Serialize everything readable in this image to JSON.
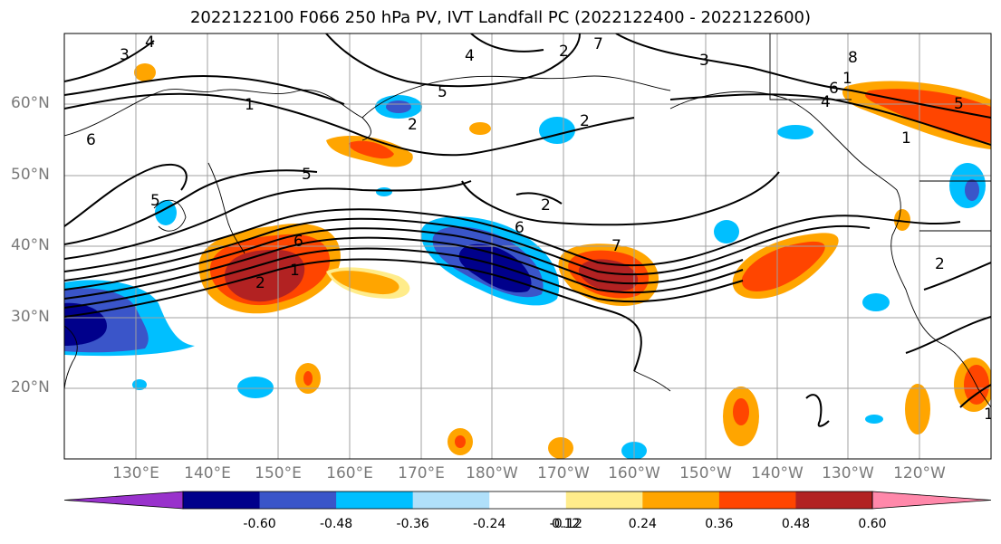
{
  "title": "2022122100 F066 250 hPa PV, IVT Landfall PC (2022122400 - 2022122600)",
  "lat_labels": [
    "60°N",
    "50°N",
    "40°N",
    "30°N",
    "20°N"
  ],
  "lon_labels": [
    "130°E",
    "140°E",
    "150°E",
    "160°E",
    "170°E",
    "180°W",
    "170°W",
    "160°W",
    "150°W",
    "140°W",
    "130°W",
    "120°W"
  ],
  "colorbar": {
    "ticks": [
      "-0.60",
      "-0.48",
      "-0.36",
      "-0.24",
      "-0.12",
      "0.12",
      "0.24",
      "0.36",
      "0.48",
      "0.60"
    ],
    "colors": [
      "#9932cc",
      "#00008b",
      "#3a55c9",
      "#00bfff",
      "#b0e0fa",
      "#ffffff",
      "#ffec8b",
      "#ffa500",
      "#ff4500",
      "#b22222",
      "#ff88aa"
    ]
  },
  "contour_labels": [
    "4",
    "3",
    "2",
    "7",
    "4",
    "5",
    "2",
    "3",
    "8",
    "1",
    "6",
    "1",
    "4",
    "5",
    "6",
    "5",
    "2",
    "2",
    "5",
    "6",
    "7",
    "6",
    "2",
    "1",
    "1",
    "2",
    "1"
  ]
}
